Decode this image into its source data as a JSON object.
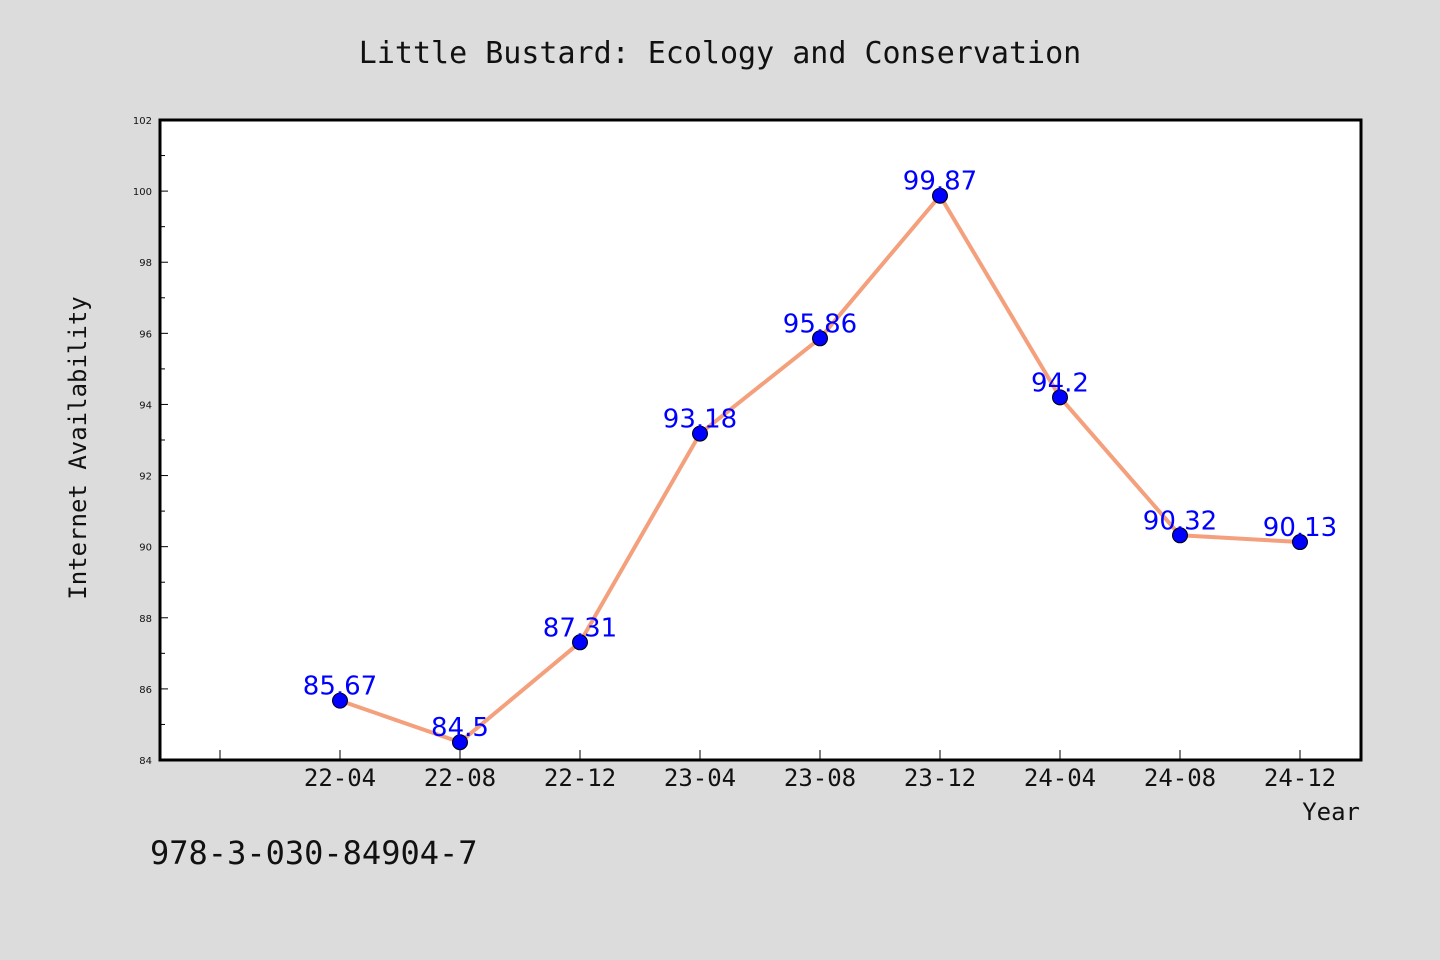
{
  "chart_data": {
    "type": "line",
    "title": "Little Bustard: Ecology and Conservation",
    "xlabel": "Year",
    "ylabel": "Internet Availability",
    "categories": [
      "22-04",
      "22-08",
      "22-12",
      "23-04",
      "23-08",
      "23-12",
      "24-04",
      "24-08",
      "24-12"
    ],
    "series": [
      {
        "values": [
          85.67,
          84.5,
          87.31,
          93.18,
          95.86,
          99.87,
          94.2,
          90.32,
          90.13
        ],
        "labels": [
          "85.67",
          "84.5",
          "87.31",
          "93.18",
          "95.86",
          "99.87",
          "94.2",
          "90.32",
          "90.13"
        ],
        "line_color": "#f4a07c",
        "marker_color": "#0000ff"
      }
    ],
    "ylim": [
      84,
      102
    ],
    "yticks": [
      "84",
      "86",
      "88",
      "90",
      "92",
      "94",
      "96",
      "98",
      "100",
      "102"
    ],
    "grid": false,
    "legend": "none"
  },
  "footer": {
    "isbn": "978-3-030-84904-7"
  },
  "colors": {
    "background": "#dcdcdc",
    "plot_background": "#ffffff",
    "axis": "#000000"
  }
}
